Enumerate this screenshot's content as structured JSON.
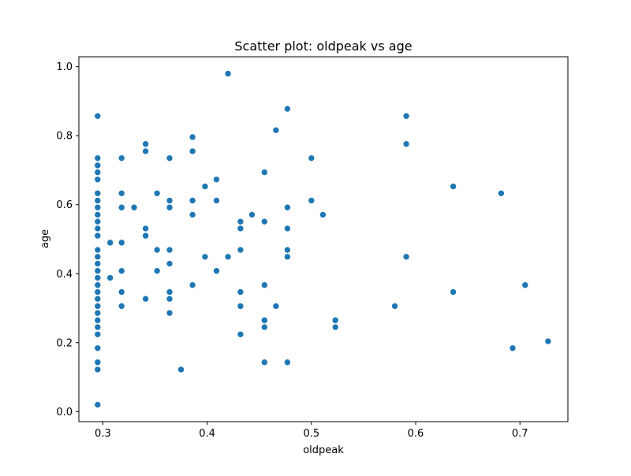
{
  "chart_data": {
    "type": "scatter",
    "title": "Scatter plot: oldpeak vs age",
    "xlabel": "oldpeak",
    "ylabel": "age",
    "xlim": [
      0.277,
      0.746
    ],
    "ylim": [
      -0.029,
      1.029
    ],
    "xticks": [
      0.3,
      0.4,
      0.5,
      0.6,
      0.7
    ],
    "xtick_labels": [
      "0.3",
      "0.4",
      "0.5",
      "0.6",
      "0.7"
    ],
    "yticks": [
      0.0,
      0.2,
      0.4,
      0.6,
      0.8,
      1.0
    ],
    "ytick_labels": [
      "0.0",
      "0.2",
      "0.4",
      "0.6",
      "0.8",
      "1.0"
    ],
    "grid": false,
    "marker_color": "#1f77b4",
    "points": [
      [
        0.295,
        0.02
      ],
      [
        0.295,
        0.122
      ],
      [
        0.295,
        0.143
      ],
      [
        0.295,
        0.184
      ],
      [
        0.295,
        0.224
      ],
      [
        0.295,
        0.245
      ],
      [
        0.295,
        0.265
      ],
      [
        0.295,
        0.286
      ],
      [
        0.295,
        0.306
      ],
      [
        0.295,
        0.327
      ],
      [
        0.295,
        0.347
      ],
      [
        0.295,
        0.367
      ],
      [
        0.295,
        0.388
      ],
      [
        0.295,
        0.408
      ],
      [
        0.295,
        0.429
      ],
      [
        0.295,
        0.449
      ],
      [
        0.295,
        0.469
      ],
      [
        0.295,
        0.51
      ],
      [
        0.295,
        0.531
      ],
      [
        0.295,
        0.551
      ],
      [
        0.295,
        0.571
      ],
      [
        0.295,
        0.592
      ],
      [
        0.295,
        0.612
      ],
      [
        0.295,
        0.633
      ],
      [
        0.295,
        0.673
      ],
      [
        0.295,
        0.694
      ],
      [
        0.295,
        0.714
      ],
      [
        0.295,
        0.735
      ],
      [
        0.295,
        0.857
      ],
      [
        0.307,
        0.388
      ],
      [
        0.307,
        0.49
      ],
      [
        0.318,
        0.306
      ],
      [
        0.318,
        0.347
      ],
      [
        0.318,
        0.408
      ],
      [
        0.318,
        0.49
      ],
      [
        0.318,
        0.592
      ],
      [
        0.318,
        0.633
      ],
      [
        0.318,
        0.735
      ],
      [
        0.33,
        0.592
      ],
      [
        0.341,
        0.327
      ],
      [
        0.341,
        0.51
      ],
      [
        0.341,
        0.531
      ],
      [
        0.341,
        0.755
      ],
      [
        0.341,
        0.776
      ],
      [
        0.352,
        0.408
      ],
      [
        0.352,
        0.469
      ],
      [
        0.352,
        0.633
      ],
      [
        0.364,
        0.286
      ],
      [
        0.364,
        0.327
      ],
      [
        0.364,
        0.347
      ],
      [
        0.364,
        0.429
      ],
      [
        0.364,
        0.469
      ],
      [
        0.364,
        0.592
      ],
      [
        0.364,
        0.612
      ],
      [
        0.364,
        0.735
      ],
      [
        0.375,
        0.122
      ],
      [
        0.386,
        0.367
      ],
      [
        0.386,
        0.571
      ],
      [
        0.386,
        0.612
      ],
      [
        0.386,
        0.755
      ],
      [
        0.386,
        0.796
      ],
      [
        0.398,
        0.449
      ],
      [
        0.398,
        0.653
      ],
      [
        0.409,
        0.408
      ],
      [
        0.409,
        0.612
      ],
      [
        0.409,
        0.673
      ],
      [
        0.42,
        0.449
      ],
      [
        0.42,
        0.98
      ],
      [
        0.432,
        0.224
      ],
      [
        0.432,
        0.306
      ],
      [
        0.432,
        0.347
      ],
      [
        0.432,
        0.469
      ],
      [
        0.432,
        0.531
      ],
      [
        0.432,
        0.551
      ],
      [
        0.443,
        0.571
      ],
      [
        0.455,
        0.143
      ],
      [
        0.455,
        0.245
      ],
      [
        0.455,
        0.265
      ],
      [
        0.455,
        0.367
      ],
      [
        0.455,
        0.551
      ],
      [
        0.455,
        0.694
      ],
      [
        0.466,
        0.306
      ],
      [
        0.466,
        0.816
      ],
      [
        0.477,
        0.143
      ],
      [
        0.477,
        0.449
      ],
      [
        0.477,
        0.469
      ],
      [
        0.477,
        0.531
      ],
      [
        0.477,
        0.592
      ],
      [
        0.477,
        0.878
      ],
      [
        0.5,
        0.612
      ],
      [
        0.5,
        0.735
      ],
      [
        0.511,
        0.571
      ],
      [
        0.523,
        0.245
      ],
      [
        0.523,
        0.265
      ],
      [
        0.58,
        0.306
      ],
      [
        0.591,
        0.449
      ],
      [
        0.591,
        0.776
      ],
      [
        0.591,
        0.857
      ],
      [
        0.636,
        0.347
      ],
      [
        0.636,
        0.653
      ],
      [
        0.682,
        0.633
      ],
      [
        0.693,
        0.184
      ],
      [
        0.705,
        0.367
      ],
      [
        0.727,
        0.204
      ]
    ]
  }
}
